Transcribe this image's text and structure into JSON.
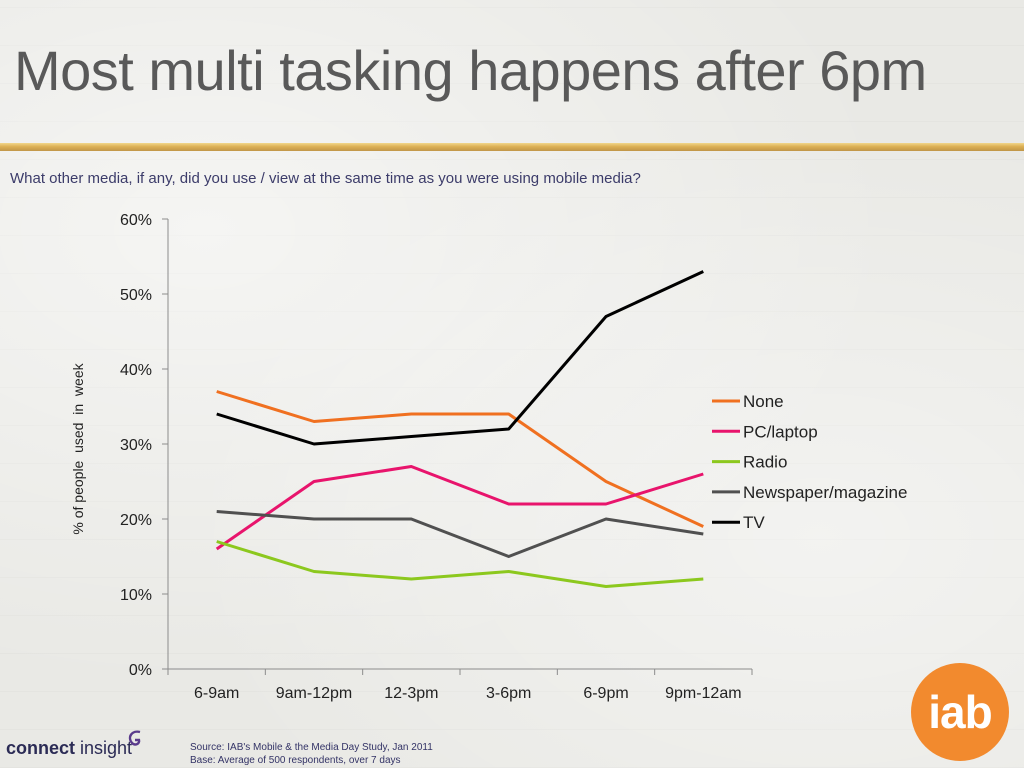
{
  "slide": {
    "title": "Most multi tasking happens after 6pm",
    "question": "What other media, if any, did you use / view at the same time as you were using mobile media?",
    "source_line1": "Source: IAB's Mobile & the Media Day Study, Jan 2011",
    "source_line2": "Base: Average of 500 respondents, over 7 days",
    "brand_name_part1": "connect",
    "brand_name_part2": "insight",
    "logo_text": "iab",
    "logo_color": "#f28a2e"
  },
  "chart_data": {
    "type": "line",
    "title": "",
    "xlabel": "",
    "ylabel": "% of people  used  in  week",
    "categories": [
      "6-9am",
      "9am-12pm",
      "12-3pm",
      "3-6pm",
      "6-9pm",
      "9pm-12am"
    ],
    "ylim": [
      0,
      60
    ],
    "yticks": [
      0,
      10,
      20,
      30,
      40,
      50,
      60
    ],
    "ytick_labels": [
      "0%",
      "10%",
      "20%",
      "30%",
      "40%",
      "50%",
      "60%"
    ],
    "grid": false,
    "legend_position": "right",
    "series": [
      {
        "name": "None",
        "color": "#f07020",
        "values": [
          37,
          33,
          34,
          34,
          25,
          19
        ]
      },
      {
        "name": "PC/laptop",
        "color": "#e8146c",
        "values": [
          16,
          25,
          27,
          22,
          22,
          26
        ]
      },
      {
        "name": "Radio",
        "color": "#8cc81e",
        "values": [
          17,
          13,
          12,
          13,
          11,
          12
        ]
      },
      {
        "name": "Newspaper/magazine",
        "color": "#505050",
        "values": [
          21,
          20,
          20,
          15,
          20,
          18
        ]
      },
      {
        "name": "TV",
        "color": "#000000",
        "values": [
          34,
          30,
          31,
          32,
          47,
          53
        ]
      }
    ]
  }
}
